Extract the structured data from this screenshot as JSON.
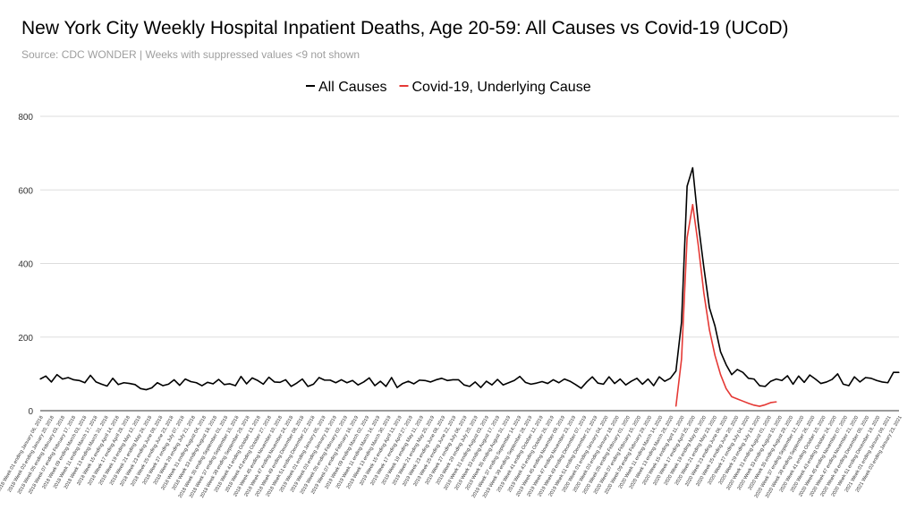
{
  "chart_data": {
    "type": "line",
    "title": "New York City Weekly Hospital Inpatient Deaths, Age 20-59: All Causes vs Covid-19 (UCoD)",
    "subtitle": "Source: CDC WONDER | Weeks with suppressed values <9 not shown",
    "xlabel": "",
    "ylabel": "",
    "ylim": [
      0,
      800
    ],
    "yticks": [
      0,
      200,
      400,
      600,
      800
    ],
    "grid": true,
    "legend_position": "top-center",
    "x_tick_labels": [
      "2018 Week 01 ending January 06, 2018",
      "2018 Week 03 ending January 20, 2018",
      "2018 Week 05 ending February 03, 2018",
      "2018 Week 07 ending February 17, 2018",
      "2018 Week 09 ending March 03, 2018",
      "2018 Week 11 ending March 17, 2018",
      "2018 Week 13 ending March 31, 2018",
      "2018 Week 15 ending April 14, 2018",
      "2018 Week 17 ending April 28, 2018",
      "2018 Week 19 ending May 12, 2018",
      "2018 Week 21 ending May 26, 2018",
      "2018 Week 23 ending June 09, 2018",
      "2018 Week 25 ending June 23, 2018",
      "2018 Week 27 ending July 07, 2018",
      "2018 Week 29 ending July 21, 2018",
      "2018 Week 31 ending August 04, 2018",
      "2018 Week 33 ending August 18, 2018",
      "2018 Week 35 ending September 01, 2018",
      "2018 Week 37 ending September 15, 2018",
      "2018 Week 39 ending September 29, 2018",
      "2018 Week 41 ending October 13, 2018",
      "2018 Week 43 ending October 27, 2018",
      "2018 Week 45 ending November 10, 2018",
      "2018 Week 47 ending November 24, 2018",
      "2018 Week 49 ending December 08, 2018",
      "2018 Week 51 ending December 22, 2018",
      "2019 Week 01 ending January 05, 2019",
      "2019 Week 03 ending January 19, 2019",
      "2019 Week 05 ending February 02, 2019",
      "2019 Week 07 ending February 16, 2019",
      "2019 Week 09 ending March 02, 2019",
      "2019 Week 11 ending March 16, 2019",
      "2019 Week 13 ending March 30, 2019",
      "2019 Week 15 ending April 13, 2019",
      "2019 Week 17 ending April 27, 2019",
      "2019 Week 19 ending May 11, 2019",
      "2019 Week 21 ending May 25, 2019",
      "2019 Week 23 ending June 08, 2019",
      "2019 Week 25 ending June 22, 2019",
      "2019 Week 27 ending July 06, 2019",
      "2019 Week 29 ending July 20, 2019",
      "2019 Week 31 ending August 03, 2019",
      "2019 Week 33 ending August 17, 2019",
      "2019 Week 35 ending August 31, 2019",
      "2019 Week 37 ending September 14, 2019",
      "2019 Week 39 ending September 28, 2019",
      "2019 Week 41 ending October 12, 2019",
      "2019 Week 43 ending October 26, 2019",
      "2019 Week 45 ending November 09, 2019",
      "2019 Week 47 ending November 23, 2019",
      "2019 Week 49 ending December 07, 2019",
      "2019 Week 51 ending December 21, 2019",
      "2020 Week 01 ending January 04, 2020",
      "2020 Week 03 ending January 18, 2020",
      "2020 Week 05 ending February 01, 2020",
      "2020 Week 07 ending February 15, 2020",
      "2020 Week 09 ending February 29, 2020",
      "2020 Week 11 ending March 14, 2020",
      "2020 Week 13 ending March 28, 2020",
      "2020 Week 15 ending April 11, 2020",
      "2020 Week 17 ending April 25, 2020",
      "2020 Week 19 ending May 09, 2020",
      "2020 Week 21 ending May 23, 2020",
      "2020 Week 23 ending June 06, 2020",
      "2020 Week 25 ending June 20, 2020",
      "2020 Week 27 ending July 04, 2020",
      "2020 Week 29 ending July 18, 2020",
      "2020 Week 31 ending August 01, 2020",
      "2020 Week 33 ending August 15, 2020",
      "2020 Week 35 ending August 29, 2020",
      "2020 Week 37 ending September 12, 2020",
      "2020 Week 39 ending September 26, 2020",
      "2020 Week 41 ending October 10, 2020",
      "2020 Week 43 ending October 24, 2020",
      "2020 Week 45 ending November 07, 2020",
      "2020 Week 47 ending November 21, 2020",
      "2020 Week 49 ending December 05, 2020",
      "2020 Week 51 ending December 19, 2020",
      "2021 Week 01 ending January 09, 2021",
      "2021 Week 03 ending January 23, 2021"
    ],
    "series": [
      {
        "name": "All Causes",
        "color": "#000000",
        "values": [
          86,
          94,
          78,
          98,
          86,
          90,
          84,
          82,
          76,
          96,
          78,
          72,
          67,
          88,
          71,
          76,
          74,
          71,
          60,
          57,
          62,
          76,
          68,
          72,
          84,
          69,
          86,
          79,
          76,
          68,
          77,
          73,
          85,
          71,
          73,
          68,
          93,
          73,
          89,
          82,
          72,
          91,
          78,
          77,
          84,
          66,
          75,
          86,
          66,
          72,
          90,
          83,
          83,
          76,
          84,
          76,
          82,
          70,
          78,
          89,
          68,
          80,
          66,
          90,
          63,
          74,
          80,
          73,
          83,
          82,
          78,
          84,
          88,
          82,
          84,
          84,
          70,
          66,
          78,
          63,
          80,
          70,
          85,
          70,
          76,
          82,
          93,
          77,
          72,
          75,
          79,
          74,
          84,
          76,
          86,
          80,
          71,
          61,
          78,
          92,
          75,
          72,
          92,
          74,
          86,
          70,
          80,
          88,
          72,
          86,
          68,
          92,
          80,
          88,
          108,
          240,
          610,
          660,
          510,
          390,
          280,
          230,
          160,
          125,
          98,
          112,
          104,
          88,
          86,
          68,
          66,
          80,
          86,
          82,
          95,
          72,
          94,
          77,
          97,
          86,
          74,
          78,
          85,
          100,
          72,
          68,
          92,
          78,
          90,
          88,
          82,
          78,
          76,
          104,
          104
        ],
        "start_index": 0
      },
      {
        "name": "Covid-19, Underlying Cause",
        "color": "#e53935",
        "values": [
          12,
          140,
          470,
          560,
          450,
          320,
          220,
          150,
          98,
          60,
          38,
          32,
          26,
          20,
          15,
          12,
          16,
          22,
          24
        ],
        "start_index": 114
      }
    ]
  }
}
